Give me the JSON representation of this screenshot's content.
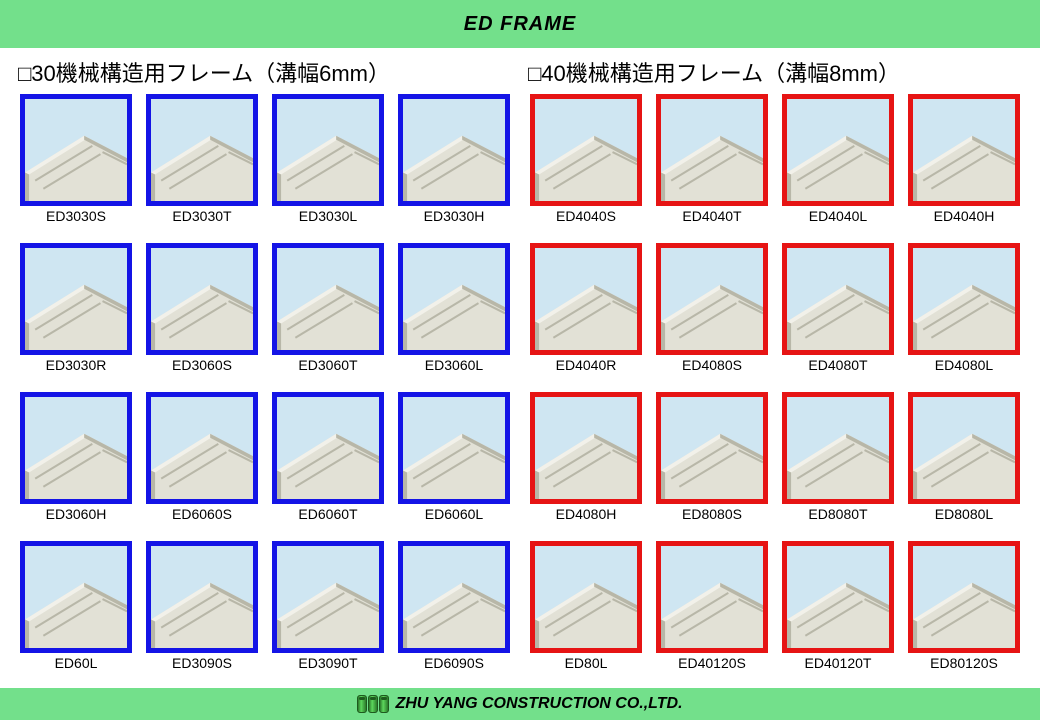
{
  "header_title": "ED FRAME",
  "footer_text": "ZHU YANG CONSTRUCTION CO.,LTD.",
  "header_bg_color": "#73e08b",
  "footer_bg_color": "#73e08b",
  "thumb_bg_color": "#cfe6f2",
  "profile_face_color": "#e2e1d6",
  "profile_edge_color": "#b8b7a8",
  "profile_highlight_color": "#f2f1ea",
  "columns": [
    {
      "title": "□30機械構造用フレーム（溝幅6mm）",
      "border_color": "#1414e6",
      "items": [
        "ED3030S",
        "ED3030T",
        "ED3030L",
        "ED3030H",
        "ED3030R",
        "ED3060S",
        "ED3060T",
        "ED3060L",
        "ED3060H",
        "ED6060S",
        "ED6060T",
        "ED6060L",
        "ED60L",
        "ED3090S",
        "ED3090T",
        "ED6090S"
      ]
    },
    {
      "title": "□40機械構造用フレーム（溝幅8mm）",
      "border_color": "#e61414",
      "items": [
        "ED4040S",
        "ED4040T",
        "ED4040L",
        "ED4040H",
        "ED4040R",
        "ED4080S",
        "ED4080T",
        "ED4080L",
        "ED4080H",
        "ED8080S",
        "ED8080T",
        "ED8080L",
        "ED80L",
        "ED40120S",
        "ED40120T",
        "ED80120S"
      ]
    }
  ]
}
